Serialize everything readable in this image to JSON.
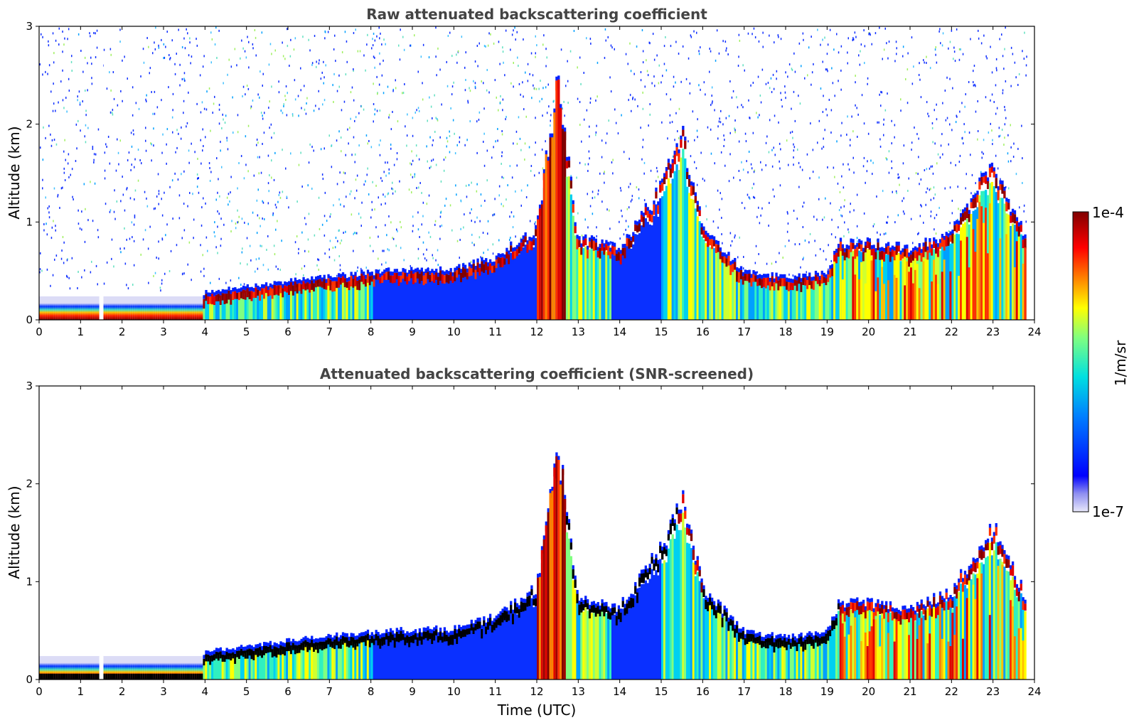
{
  "chart_data": [
    {
      "type": "heatmap",
      "title": "Raw attenuated backscattering coefficient",
      "xlabel": "",
      "ylabel": "Altitude (km)",
      "xlim": [
        0,
        24
      ],
      "ylim": [
        0,
        3
      ],
      "xticks": [
        "0",
        "1",
        "2",
        "3",
        "4",
        "5",
        "6",
        "7",
        "8",
        "9",
        "10",
        "11",
        "12",
        "13",
        "14",
        "15",
        "16",
        "17",
        "18",
        "19",
        "20",
        "21",
        "22",
        "23",
        "24"
      ],
      "yticks": [
        "0",
        "1",
        "2",
        "3"
      ],
      "layer_top_km": [
        [
          0,
          0.16
        ],
        [
          1,
          0.16
        ],
        [
          2,
          0.16
        ],
        [
          3,
          0.16
        ],
        [
          3.9,
          0.16
        ],
        [
          4,
          0.25
        ],
        [
          5,
          0.3
        ],
        [
          6,
          0.36
        ],
        [
          7,
          0.4
        ],
        [
          8,
          0.45
        ],
        [
          9,
          0.47
        ],
        [
          10,
          0.48
        ],
        [
          11,
          0.6
        ],
        [
          12,
          0.9
        ],
        [
          12.5,
          2.4
        ],
        [
          13,
          0.8
        ],
        [
          14,
          0.7
        ],
        [
          15,
          1.3
        ],
        [
          15.5,
          1.85
        ],
        [
          16,
          0.9
        ],
        [
          17,
          0.45
        ],
        [
          18,
          0.4
        ],
        [
          19,
          0.45
        ],
        [
          19.3,
          0.75
        ],
        [
          20,
          0.75
        ],
        [
          21,
          0.7
        ],
        [
          22,
          0.85
        ],
        [
          23,
          1.55
        ],
        [
          23.8,
          0.8
        ]
      ],
      "gap_utc": [
        1.45,
        1.55
      ]
    },
    {
      "type": "heatmap",
      "title": "Attenuated backscattering coefficient (SNR-screened)",
      "xlabel": "Time (UTC)",
      "ylabel": "Altitude (km)",
      "xlim": [
        0,
        24
      ],
      "ylim": [
        0,
        3
      ],
      "xticks": [
        "0",
        "1",
        "2",
        "3",
        "4",
        "5",
        "6",
        "7",
        "8",
        "9",
        "10",
        "11",
        "12",
        "13",
        "14",
        "15",
        "16",
        "17",
        "18",
        "19",
        "20",
        "21",
        "22",
        "23",
        "24"
      ],
      "yticks": [
        "0",
        "1",
        "2",
        "3"
      ],
      "layer_top_km": [
        [
          0,
          0.16
        ],
        [
          1,
          0.16
        ],
        [
          2,
          0.16
        ],
        [
          3,
          0.16
        ],
        [
          3.9,
          0.16
        ],
        [
          4,
          0.25
        ],
        [
          5,
          0.3
        ],
        [
          6,
          0.36
        ],
        [
          7,
          0.4
        ],
        [
          8,
          0.45
        ],
        [
          9,
          0.47
        ],
        [
          10,
          0.48
        ],
        [
          11,
          0.6
        ],
        [
          12,
          0.9
        ],
        [
          12.5,
          2.4
        ],
        [
          13,
          0.8
        ],
        [
          14,
          0.7
        ],
        [
          15,
          1.3
        ],
        [
          15.5,
          1.85
        ],
        [
          16,
          0.9
        ],
        [
          17,
          0.45
        ],
        [
          18,
          0.4
        ],
        [
          19,
          0.45
        ],
        [
          19.3,
          0.75
        ],
        [
          20,
          0.75
        ],
        [
          21,
          0.7
        ],
        [
          22,
          0.85
        ],
        [
          23,
          1.55
        ],
        [
          23.8,
          0.8
        ]
      ],
      "gap_utc": [
        1.45,
        1.55
      ]
    }
  ],
  "colorbar": {
    "max_label": "1e-4",
    "min_label": "1e-7",
    "unit_label": "1/m/sr",
    "colormap": "jet",
    "colors": [
      "#e8e8fa",
      "#0000ff",
      "#00a0ff",
      "#20e0e0",
      "#80ff80",
      "#ffff00",
      "#ff8000",
      "#ff0000",
      "#800000"
    ]
  }
}
